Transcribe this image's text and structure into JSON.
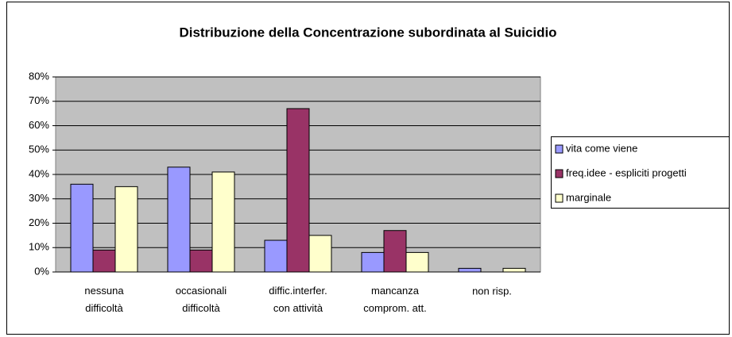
{
  "chart_data": {
    "type": "bar",
    "title": "Distribuzione della Concentrazione subordinata al Suicidio",
    "categories": [
      "nessuna\ndifficoltà",
      "occasionali\ndifficoltà",
      "diffic.interfer.\ncon attività",
      "mancanza\ncomprom. att.",
      "non risp."
    ],
    "series": [
      {
        "name": "vita come viene",
        "color": "#9999ff",
        "values": [
          36,
          43,
          13,
          8,
          1.5
        ]
      },
      {
        "name": "freq.idee - espliciti progetti",
        "color": "#993366",
        "values": [
          9,
          9,
          67,
          17,
          0
        ]
      },
      {
        "name": "marginale",
        "color": "#ffffcc",
        "values": [
          35,
          41,
          15,
          8,
          1.5
        ]
      }
    ],
    "ylim": [
      0,
      80
    ],
    "yticks": [
      {
        "value": 0,
        "label": "0%"
      },
      {
        "value": 10,
        "label": "10%"
      },
      {
        "value": 20,
        "label": "20%"
      },
      {
        "value": 30,
        "label": "30%"
      },
      {
        "value": 40,
        "label": "40%"
      },
      {
        "value": 50,
        "label": "50%"
      },
      {
        "value": 60,
        "label": "60%"
      },
      {
        "value": 70,
        "label": "70%"
      },
      {
        "value": 80,
        "label": "80%"
      }
    ],
    "grid": true,
    "legend": "right"
  }
}
